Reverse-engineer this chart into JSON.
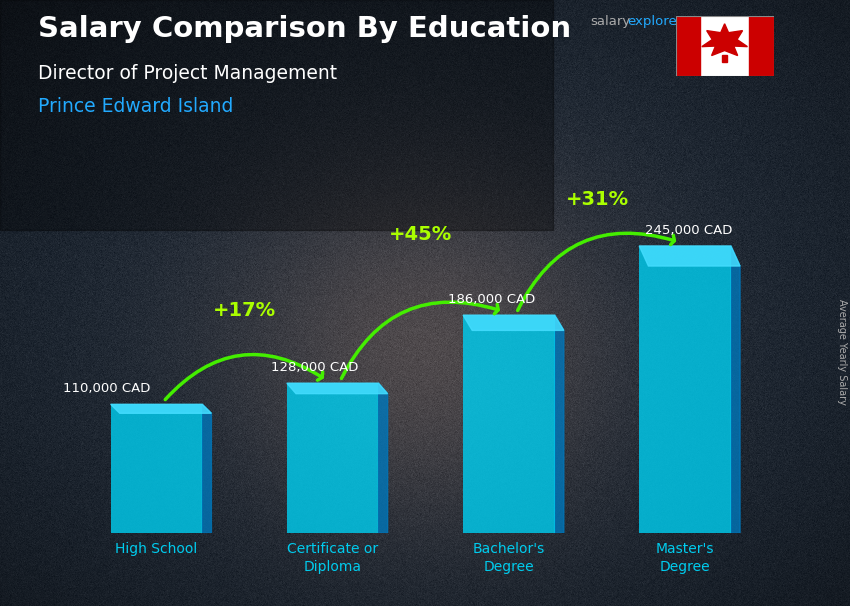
{
  "title_line1": "Salary Comparison By Education",
  "subtitle_line1": "Director of Project Management",
  "subtitle_line2": "Prince Edward Island",
  "ylabel": "Average Yearly Salary",
  "categories": [
    "High School",
    "Certificate or\nDiploma",
    "Bachelor's\nDegree",
    "Master's\nDegree"
  ],
  "values": [
    110000,
    128000,
    186000,
    245000
  ],
  "value_labels": [
    "110,000 CAD",
    "128,000 CAD",
    "186,000 CAD",
    "245,000 CAD"
  ],
  "pct_labels": [
    "+17%",
    "+45%",
    "+31%"
  ],
  "bar_color": "#00ccee",
  "bar_alpha": 0.82,
  "bar_side_color": "#0077bb",
  "bar_top_color": "#44ddff",
  "title_color": "#ffffff",
  "subtitle1_color": "#ffffff",
  "subtitle2_color": "#22aaff",
  "value_label_color": "#ffffff",
  "pct_color": "#aaff00",
  "arrow_color": "#44ee00",
  "xlabel_color": "#00ccee",
  "bg_color1": "#2a3a50",
  "bg_color2": "#1a2535",
  "bar_width": 0.52,
  "ylim": [
    0,
    310000
  ],
  "figsize": [
    8.5,
    6.06
  ],
  "dpi": 100
}
